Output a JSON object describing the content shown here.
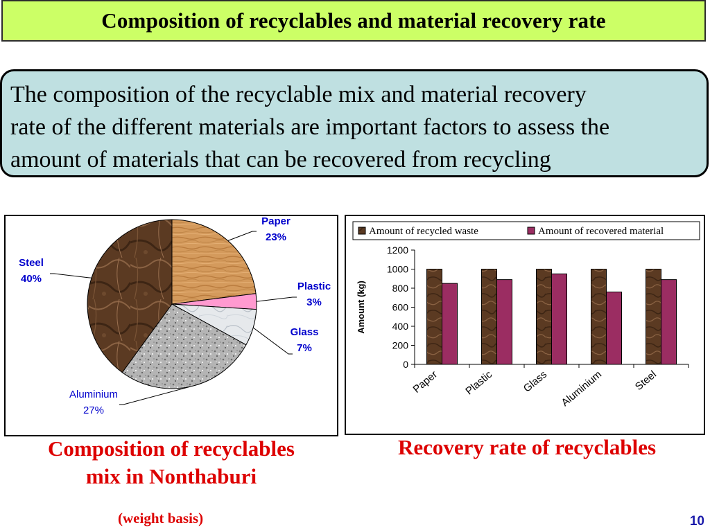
{
  "title": "Composition of recyclables  and material recovery rate",
  "intro": {
    "line1": "The composition of the recyclable mix and material recovery",
    "line2": "rate of the different materials are important factors to assess the",
    "line3": "amount of materials that can be recovered from recycling"
  },
  "captions": {
    "pie_line1": "Composition of recyclables",
    "pie_line2": "mix in Nonthaburi",
    "pie_note": "(weight basis)",
    "bar": "Recovery rate  of recyclables"
  },
  "page_number": "10",
  "colors": {
    "title_bg": "#ccff66",
    "intro_bg": "#bfe0e1",
    "caption_red": "#dd0000",
    "label_blue": "#0000cc",
    "bar_recycled": "#5b3a22",
    "bar_recovered": "#9b2d62"
  },
  "chart_data": [
    {
      "type": "pie",
      "slices": [
        {
          "label": "Paper",
          "value": 23,
          "pct_text": "23%",
          "color": "#d49a5c",
          "texture": "wood"
        },
        {
          "label": "Plastic",
          "value": 3,
          "pct_text": "3%",
          "color": "#ff9ad0",
          "texture": "solid"
        },
        {
          "label": "Glass",
          "value": 7,
          "pct_text": "7%",
          "color": "#e6e9ec",
          "texture": "marble"
        },
        {
          "label": "Aluminium",
          "value": 27,
          "pct_text": "27%",
          "color": "#b4b4b4",
          "texture": "granite"
        },
        {
          "label": "Steel",
          "value": 40,
          "pct_text": "40%",
          "color": "#5b3a22",
          "texture": "brown-marble"
        }
      ]
    },
    {
      "type": "bar",
      "categories": [
        "Paper",
        "Plastic",
        "Glass",
        "Aluminium",
        "Steel"
      ],
      "series": [
        {
          "name": "Amount of recycled waste",
          "values": [
            1000,
            1000,
            1000,
            1000,
            1000
          ]
        },
        {
          "name": "Amount of recovered material",
          "values": [
            850,
            890,
            950,
            760,
            890
          ]
        }
      ],
      "ylabel": "Amount (kg)",
      "ylim": [
        0,
        1200
      ],
      "yticks": [
        0,
        200,
        400,
        600,
        800,
        1000,
        1200
      ],
      "legend": "top",
      "grid": false
    }
  ]
}
